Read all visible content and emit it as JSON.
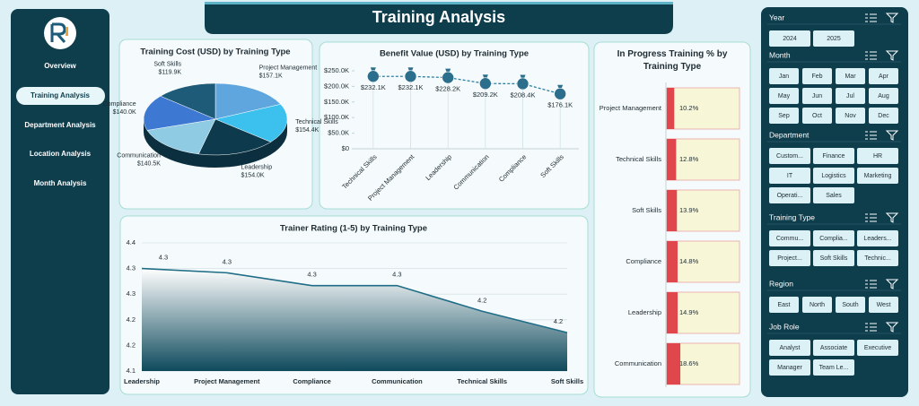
{
  "header": {
    "title": "Training Analysis"
  },
  "nav": {
    "items": [
      "Overview",
      "Training Analysis",
      "Department Analysis",
      "Location Analysis",
      "Month Analysis"
    ],
    "active": 1
  },
  "slicers": [
    {
      "title": "Year",
      "items": [
        "2024",
        "2025"
      ]
    },
    {
      "title": "Month",
      "items": [
        "Jan",
        "Feb",
        "Mar",
        "Apr",
        "May",
        "Jun",
        "Jul",
        "Aug",
        "Sep",
        "Oct",
        "Nov",
        "Dec"
      ]
    },
    {
      "title": "Department",
      "items": [
        "Custom...",
        "Finance",
        "HR",
        "IT",
        "Logistics",
        "Marketing",
        "Operati...",
        "Sales"
      ]
    },
    {
      "title": "Training Type",
      "items": [
        "Commu...",
        "Complia...",
        "Leaders...",
        "Project...",
        "Soft Skills",
        "Technic..."
      ]
    },
    {
      "title": "Region",
      "items": [
        "East",
        "North",
        "South",
        "West"
      ]
    },
    {
      "title": "Job Role",
      "items": [
        "Analyst",
        "Associate",
        "Executive",
        "Manager",
        "Team Le..."
      ]
    }
  ],
  "chart_data": [
    {
      "type": "pie",
      "title": "Training Cost (USD) by Training Type",
      "categories": [
        "Project Management",
        "Technical Skills",
        "Leadership",
        "Communication",
        "Compliance",
        "Soft Skills"
      ],
      "values": [
        157100,
        154400,
        154000,
        140500,
        140000,
        119900
      ],
      "value_labels": [
        "$157.1K",
        "$154.4K",
        "$154.0K",
        "$140.5K",
        "$140.0K",
        "$119.9K"
      ],
      "colors": [
        "#5fa6de",
        "#3cc0ee",
        "#0e3a4e",
        "#8fcbe2",
        "#3d78d2",
        "#1d5b79"
      ]
    },
    {
      "type": "line",
      "title": "Benefit Value (USD) by Training Type",
      "categories": [
        "Technical Skills",
        "Project Management",
        "Leadership",
        "Communication",
        "Compliance",
        "Soft Skills"
      ],
      "values": [
        232100,
        232100,
        228200,
        209200,
        208400,
        176100
      ],
      "value_labels": [
        "$232.1K",
        "$232.1K",
        "$228.2K",
        "$209.2K",
        "$208.4K",
        "$176.1K"
      ],
      "color": "#2d7fa1",
      "ylim": [
        0,
        250000
      ],
      "yticks": [
        {
          "value": 0,
          "label": "$0"
        },
        {
          "value": 50000,
          "label": "$50.0K"
        },
        {
          "value": 100000,
          "label": "$100.0K"
        },
        {
          "value": 150000,
          "label": "$150.0K"
        },
        {
          "value": 200000,
          "label": "$200.0K"
        },
        {
          "value": 250000,
          "label": "$250.0K"
        }
      ]
    },
    {
      "type": "hbar",
      "title": "In Progress Training % by Training Type",
      "categories": [
        "Project Management",
        "Technical Skills",
        "Soft Skills",
        "Compliance",
        "Leadership",
        "Communication"
      ],
      "values": [
        10.2,
        12.8,
        13.9,
        14.8,
        14.9,
        18.6
      ],
      "value_labels": [
        "10.2%",
        "12.8%",
        "13.9%",
        "14.8%",
        "14.9%",
        "18.6%"
      ],
      "color": "#e0474c",
      "xlim": [
        0,
        100
      ]
    },
    {
      "type": "area",
      "title": "Trainer Rating (1-5) by Training Type",
      "categories": [
        "Leadership",
        "Project Management",
        "Compliance",
        "Communication",
        "Technical Skills",
        "Soft Skills"
      ],
      "values": [
        4.34,
        4.33,
        4.3,
        4.3,
        4.24,
        4.19
      ],
      "value_labels": [
        "4.3",
        "4.3",
        "4.3",
        "4.3",
        "4.2",
        "4.2"
      ],
      "color": "#1f6d86",
      "ylim": [
        4.1,
        4.4
      ],
      "grid": true,
      "yticks": [
        4.1,
        {
          "value": 4.16,
          "label": "4.2"
        },
        {
          "value": 4.22,
          "label": "4.2"
        },
        {
          "value": 4.28,
          "label": "4.3"
        },
        {
          "value": 4.34,
          "label": "4.3"
        },
        4.4
      ]
    }
  ]
}
